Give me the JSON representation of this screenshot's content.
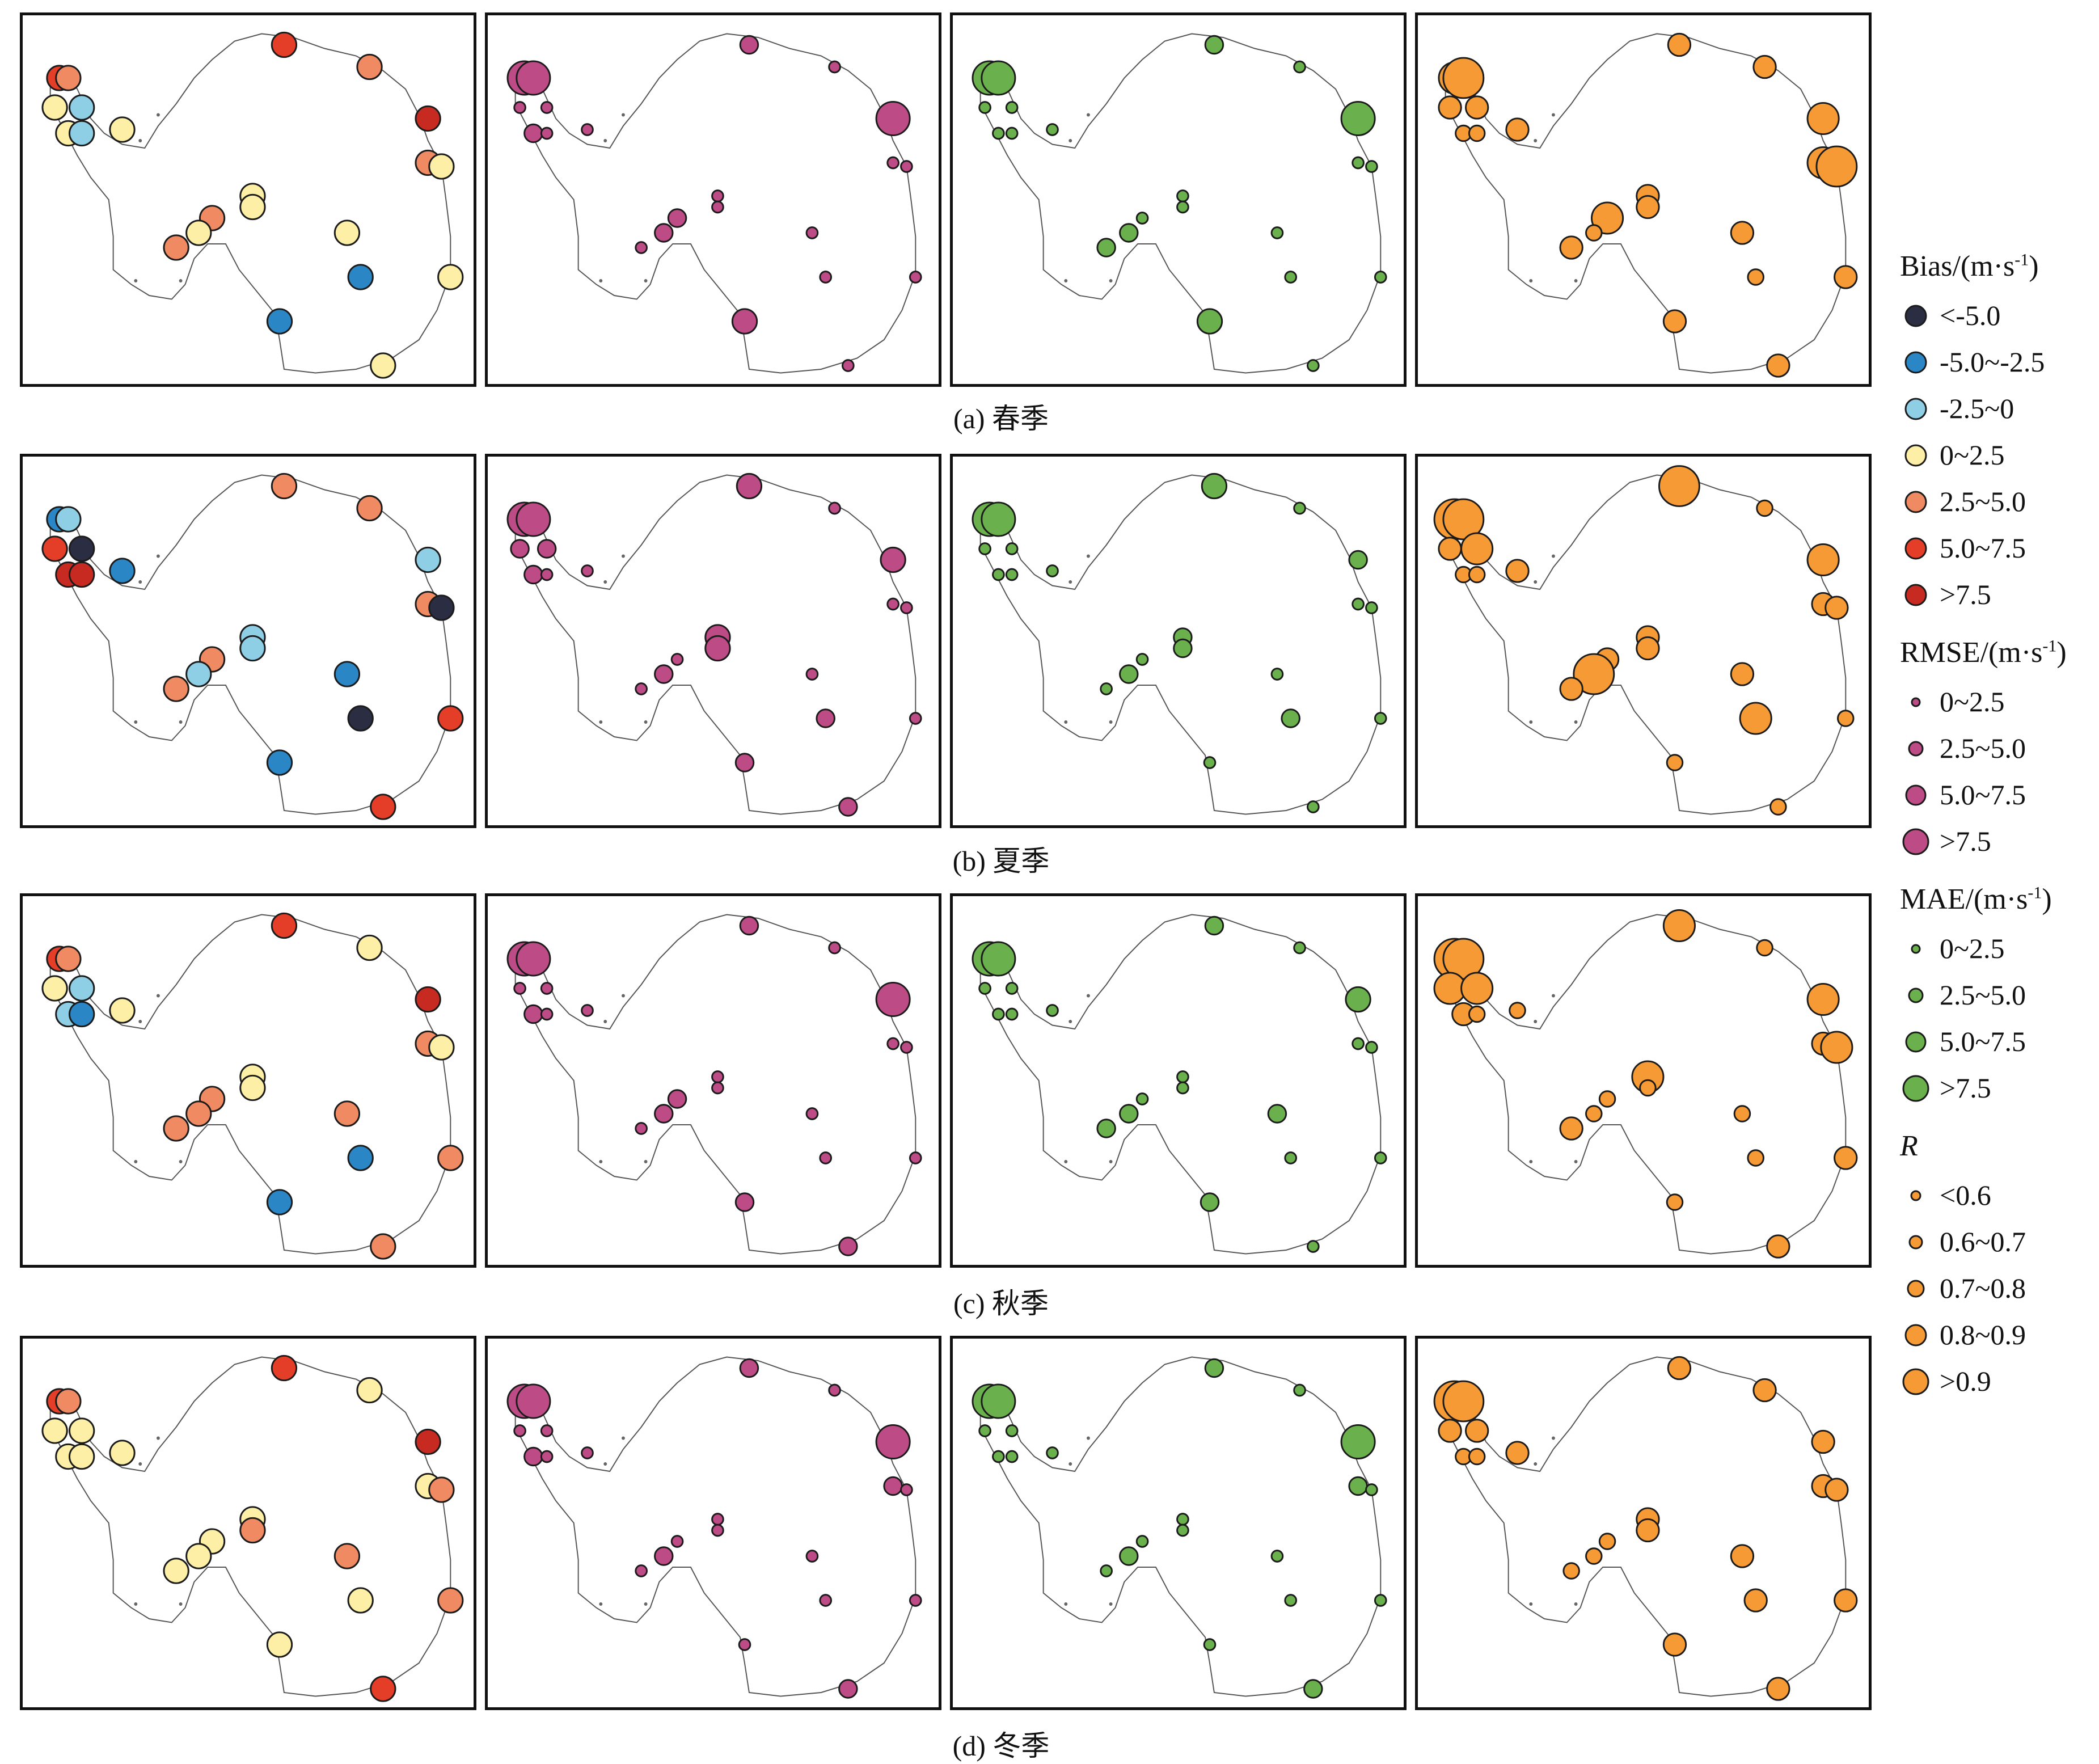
{
  "rows": [
    {
      "caption": "(a) 春季"
    },
    {
      "caption": "(b) 夏季"
    },
    {
      "caption": "(c) 秋季"
    },
    {
      "caption": "(d) 冬季"
    }
  ],
  "legend": {
    "bias": {
      "title_main": "Bias/(m·s",
      "title_sup": "-1",
      "title_end": ")",
      "items": [
        {
          "label": "<-5.0",
          "color": "#2b2d42"
        },
        {
          "label": "-5.0~-2.5",
          "color": "#2a86c4"
        },
        {
          "label": "-2.5~0",
          "color": "#8ecfe6"
        },
        {
          "label": "0~2.5",
          "color": "#fdefa6"
        },
        {
          "label": "2.5~5.0",
          "color": "#f08a62"
        },
        {
          "label": "5.0~7.5",
          "color": "#e43d28"
        },
        {
          "label": ">7.5",
          "color": "#c72a20"
        }
      ]
    },
    "rmse": {
      "title_main": "RMSE/(m·s",
      "title_sup": "-1",
      "title_end": ")",
      "color": "#bd4b86",
      "items": [
        {
          "label": "0~2.5"
        },
        {
          "label": "2.5~5.0"
        },
        {
          "label": "5.0~7.5"
        },
        {
          "label": ">7.5"
        }
      ]
    },
    "mae": {
      "title_main": "MAE/(m·s",
      "title_sup": "-1",
      "title_end": ")",
      "color": "#6ab04c",
      "items": [
        {
          "label": "0~2.5"
        },
        {
          "label": "2.5~5.0"
        },
        {
          "label": "5.0~7.5"
        },
        {
          "label": ">7.5"
        }
      ]
    },
    "r": {
      "title": "R",
      "color": "#f59a35",
      "items": [
        {
          "label": "<0.6"
        },
        {
          "label": "0.6~0.7"
        },
        {
          "label": "0.7~0.8"
        },
        {
          "label": "0.8~0.9"
        },
        {
          "label": ">0.9"
        }
      ]
    }
  },
  "stations": [
    [
      0.08,
      0.17
    ],
    [
      0.1,
      0.17
    ],
    [
      0.07,
      0.25
    ],
    [
      0.13,
      0.25
    ],
    [
      0.1,
      0.32
    ],
    [
      0.13,
      0.32
    ],
    [
      0.22,
      0.31
    ],
    [
      0.58,
      0.08
    ],
    [
      0.77,
      0.14
    ],
    [
      0.9,
      0.28
    ],
    [
      0.9,
      0.4
    ],
    [
      0.93,
      0.41
    ],
    [
      0.51,
      0.49
    ],
    [
      0.51,
      0.52
    ],
    [
      0.42,
      0.55
    ],
    [
      0.39,
      0.59
    ],
    [
      0.34,
      0.63
    ],
    [
      0.72,
      0.59
    ],
    [
      0.75,
      0.71
    ],
    [
      0.95,
      0.71
    ],
    [
      0.57,
      0.83
    ],
    [
      0.8,
      0.95
    ]
  ],
  "seasons": [
    {
      "bias": [
        5,
        4,
        3,
        2,
        3,
        2,
        3,
        5,
        4,
        6,
        4,
        3,
        3,
        3,
        4,
        3,
        4,
        3,
        1,
        3,
        1,
        3
      ],
      "rmse": [
        4,
        4,
        1,
        1,
        2,
        1,
        1,
        2,
        1,
        4,
        1,
        1,
        1,
        1,
        2,
        2,
        1,
        1,
        1,
        1,
        3,
        1
      ],
      "mae": [
        4,
        4,
        1,
        1,
        1,
        1,
        1,
        2,
        1,
        4,
        1,
        1,
        1,
        1,
        1,
        2,
        2,
        1,
        1,
        1,
        3,
        1
      ],
      "r": [
        3,
        4,
        2,
        2,
        1,
        1,
        2,
        2,
        2,
        3,
        3,
        4,
        2,
        2,
        3,
        1,
        2,
        2,
        1,
        2,
        2,
        2
      ]
    },
    {
      "bias": [
        1,
        2,
        5,
        0,
        6,
        6,
        1,
        4,
        4,
        2,
        4,
        0,
        2,
        2,
        4,
        2,
        4,
        1,
        0,
        5,
        1,
        5
      ],
      "rmse": [
        4,
        4,
        2,
        2,
        2,
        1,
        1,
        3,
        1,
        3,
        1,
        1,
        3,
        3,
        1,
        2,
        1,
        1,
        2,
        1,
        2,
        2
      ],
      "mae": [
        4,
        4,
        1,
        1,
        1,
        1,
        1,
        3,
        1,
        2,
        1,
        1,
        2,
        2,
        1,
        2,
        1,
        1,
        2,
        1,
        1,
        1
      ],
      "r": [
        4,
        4,
        2,
        3,
        1,
        1,
        2,
        4,
        1,
        3,
        2,
        2,
        2,
        2,
        2,
        4,
        2,
        2,
        3,
        1,
        1,
        1
      ]
    },
    {
      "bias": [
        5,
        4,
        3,
        2,
        2,
        1,
        3,
        5,
        3,
        6,
        4,
        3,
        3,
        3,
        4,
        4,
        4,
        4,
        1,
        4,
        1,
        4
      ],
      "rmse": [
        4,
        4,
        1,
        1,
        2,
        1,
        1,
        2,
        1,
        4,
        1,
        1,
        1,
        1,
        2,
        2,
        1,
        1,
        1,
        1,
        2,
        2
      ],
      "mae": [
        4,
        4,
        1,
        1,
        1,
        1,
        1,
        2,
        1,
        3,
        1,
        1,
        1,
        1,
        1,
        2,
        2,
        2,
        1,
        1,
        2,
        1
      ],
      "r": [
        4,
        4,
        3,
        3,
        2,
        1,
        1,
        3,
        1,
        3,
        2,
        3,
        3,
        1,
        1,
        1,
        2,
        1,
        1,
        2,
        1,
        2
      ]
    },
    {
      "bias": [
        5,
        4,
        3,
        3,
        3,
        3,
        3,
        5,
        3,
        6,
        3,
        4,
        3,
        4,
        3,
        3,
        3,
        4,
        3,
        4,
        3,
        5
      ],
      "rmse": [
        4,
        4,
        1,
        1,
        2,
        1,
        1,
        2,
        1,
        4,
        2,
        1,
        1,
        1,
        1,
        2,
        1,
        1,
        1,
        1,
        1,
        2
      ],
      "mae": [
        4,
        4,
        1,
        1,
        1,
        1,
        1,
        2,
        1,
        4,
        2,
        1,
        1,
        1,
        1,
        2,
        1,
        1,
        1,
        1,
        1,
        2
      ],
      "r": [
        4,
        4,
        2,
        2,
        1,
        1,
        2,
        2,
        2,
        2,
        2,
        2,
        2,
        2,
        1,
        1,
        1,
        2,
        2,
        2,
        2,
        2
      ]
    }
  ]
}
